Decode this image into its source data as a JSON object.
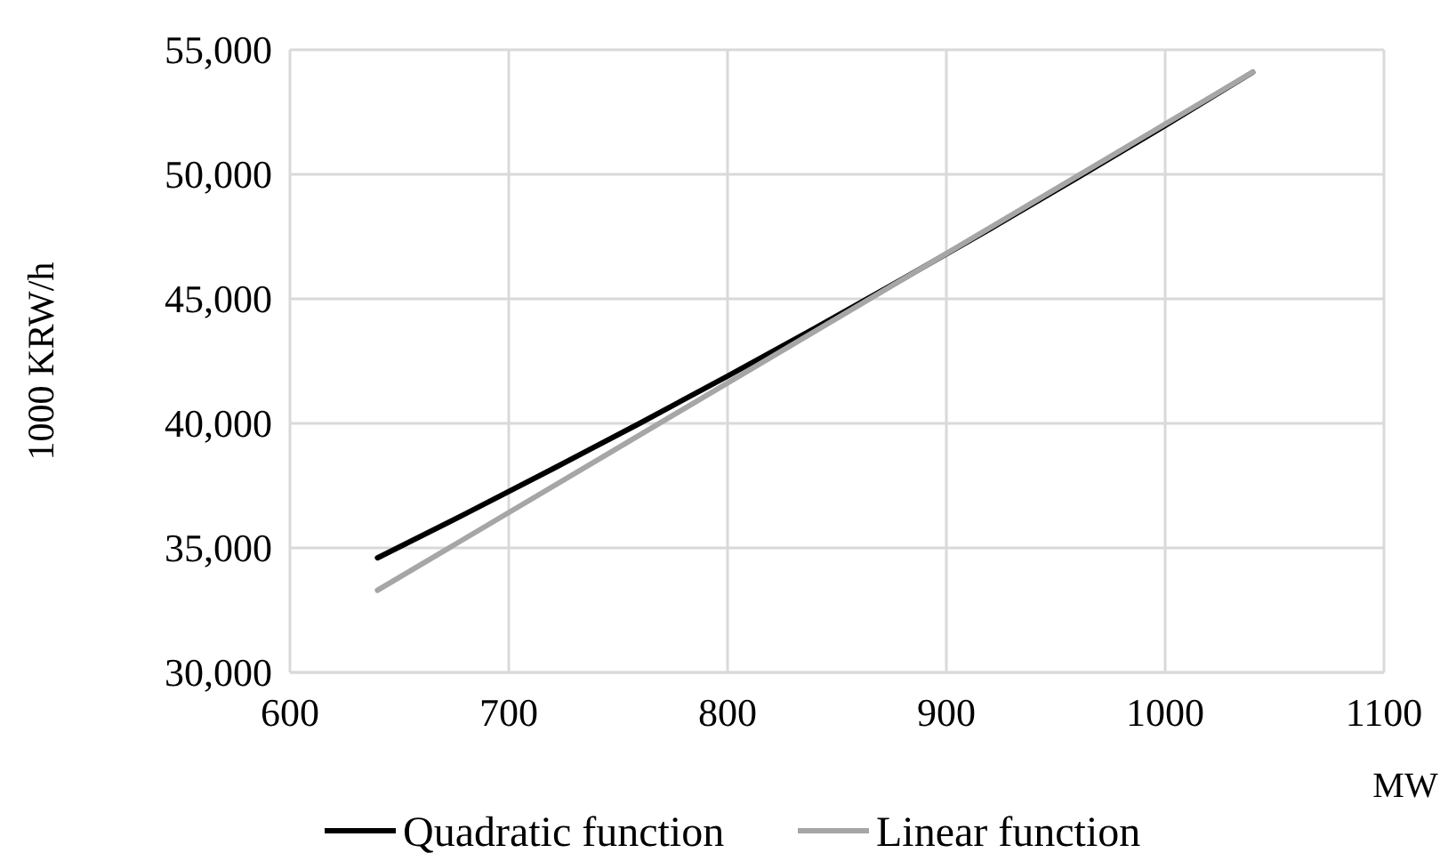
{
  "chart_data": {
    "type": "line",
    "xlabel": "MW",
    "ylabel": "1000 KRW/h",
    "xlim": [
      600,
      1100
    ],
    "xticks": [
      600,
      700,
      800,
      900,
      1000,
      1100
    ],
    "ylim": [
      30000,
      55000
    ],
    "yticks": [
      {
        "value": 30000,
        "label": "30,000"
      },
      {
        "value": 35000,
        "label": "35,000"
      },
      {
        "value": 40000,
        "label": "40,000"
      },
      {
        "value": 45000,
        "label": "45,000"
      },
      {
        "value": 50000,
        "label": "50,000"
      },
      {
        "value": 55000,
        "label": "55,000"
      }
    ],
    "grid": true,
    "legend": "bottom",
    "marker": "none",
    "line_style": "solid",
    "series": [
      {
        "name": "Quadratic function",
        "color": "#000000",
        "x": [
          640,
          680,
          720,
          760,
          800,
          840,
          880,
          920,
          960,
          1000,
          1040
        ],
        "values": [
          34600,
          36360,
          38170,
          40010,
          41900,
          43830,
          45800,
          47810,
          49870,
          51960,
          54100
        ]
      },
      {
        "name": "Linear function",
        "color": "#a6a6a6",
        "x": [
          640,
          1040
        ],
        "values": [
          33300,
          54100
        ]
      }
    ]
  }
}
